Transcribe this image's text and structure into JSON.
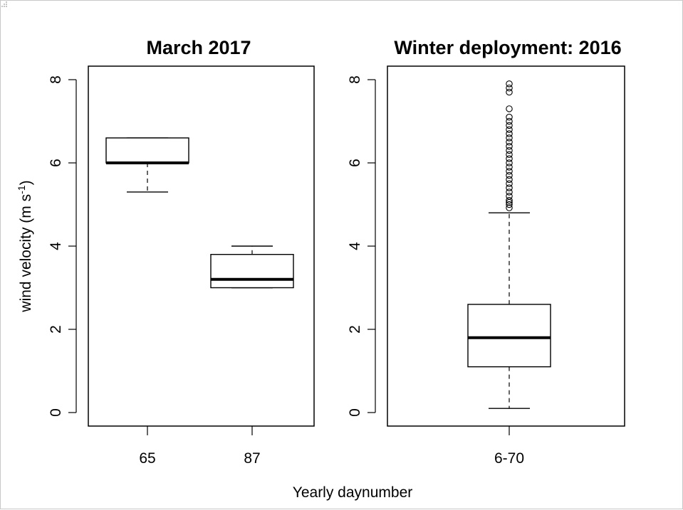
{
  "chart_data": [
    {
      "type": "box",
      "title": "March 2017",
      "ylabel": "wind velocity (m s-1)",
      "ylabel_main": "wind velocity (m s",
      "ylabel_sup": "-1",
      "ylabel_close": ")",
      "ylim": [
        0,
        8
      ],
      "yticks": [
        "0",
        "2",
        "4",
        "6",
        "8"
      ],
      "categories": [
        "65",
        "87"
      ],
      "boxes": [
        {
          "category": "65",
          "whisker_low": 5.3,
          "q1": 6.0,
          "median": 6.0,
          "q3": 6.6,
          "whisker_high": 6.6,
          "outliers": []
        },
        {
          "category": "87",
          "whisker_low": 3.0,
          "q1": 3.0,
          "median": 3.2,
          "q3": 3.8,
          "whisker_high": 4.0,
          "outliers": []
        }
      ],
      "grid": false
    },
    {
      "type": "box",
      "title": "Winter deployment: 2016",
      "ylim": [
        0,
        8
      ],
      "yticks": [
        "0",
        "2",
        "4",
        "6",
        "8"
      ],
      "categories": [
        "6-70"
      ],
      "boxes": [
        {
          "category": "6-70",
          "whisker_low": 0.1,
          "q1": 1.1,
          "median": 1.8,
          "q3": 2.6,
          "whisker_high": 4.8,
          "outliers": [
            4.92,
            5.0,
            5.05,
            5.1,
            5.2,
            5.3,
            5.4,
            5.5,
            5.6,
            5.7,
            5.8,
            5.9,
            6.0,
            6.1,
            6.2,
            6.3,
            6.4,
            6.5,
            6.6,
            6.7,
            6.8,
            6.9,
            7.0,
            7.1,
            7.3,
            7.7,
            7.8,
            7.9
          ]
        }
      ],
      "grid": false
    }
  ],
  "xlabel": "Yearly daynumber"
}
